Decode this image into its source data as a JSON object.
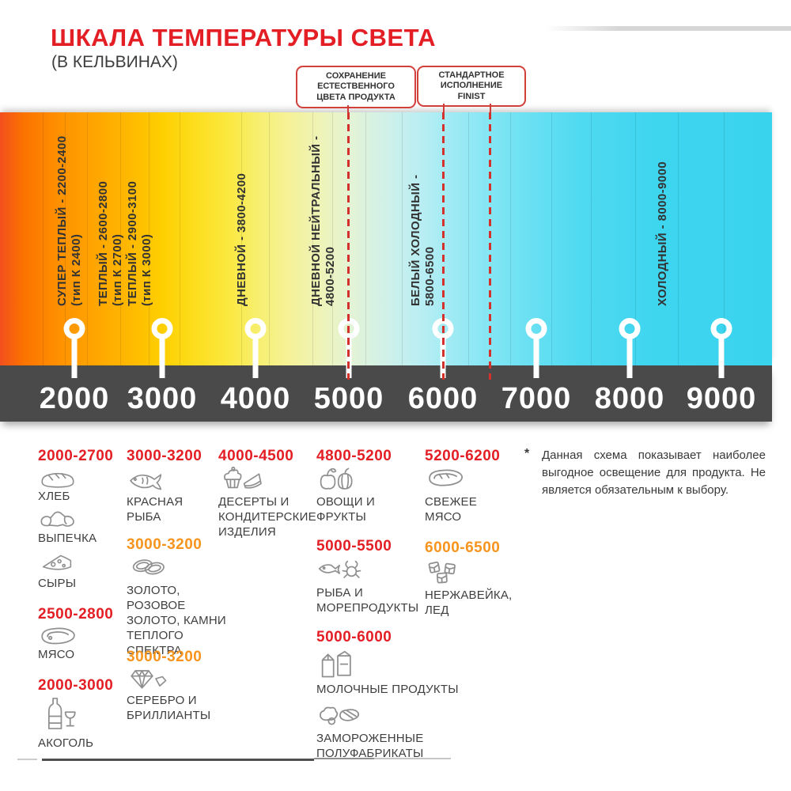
{
  "header": {
    "title": "ШКАЛА ТЕМПЕРАТУРЫ СВЕТА",
    "subtitle": "(В КЕЛЬВИНАХ)"
  },
  "callouts": {
    "natural": {
      "line1": "СОХРАНЕНИЕ",
      "line2": "ЕСТЕСТВЕННОГО",
      "line3": "ЦВЕТА ПРОДУКТА"
    },
    "finist": {
      "line1": "СТАНДАРТНОЕ",
      "line2": "ИСПОЛНЕНИЕ",
      "line3": "FINIST"
    }
  },
  "scale": {
    "zones": [
      {
        "line1": "СУПЕР ТЕПЛЫЙ - 2200-2400",
        "line2": "(тип К 2400)"
      },
      {
        "line1": "ТЕПЛЫЙ - 2600-2800",
        "line2": "(тип К 2700)"
      },
      {
        "line1": "ТЕПЛЫЙ - 2900-3100",
        "line2": "(тип К 3000)"
      },
      {
        "line1": "ДНЕВНОЙ - 3800-4200",
        "line2": ""
      },
      {
        "line1": "ДНЕВНОЙ НЕЙТРАЛЬНЫЙ -",
        "line2": "4800-5200"
      },
      {
        "line1": "БЕЛЫЙ ХОЛОДНЫЙ -",
        "line2": "5800-6500"
      },
      {
        "line1": "ХОЛОДНЫЙ - 8000-9000",
        "line2": ""
      }
    ],
    "ticks": [
      "2000",
      "3000",
      "4000",
      "5000",
      "6000",
      "7000",
      "8000",
      "9000"
    ]
  },
  "products": {
    "col1": {
      "range1": "2000-2700",
      "bread": "ХЛЕБ",
      "pastry": "ВЫПЕЧКА",
      "cheese": "СЫРЫ",
      "range2": "2500-2800",
      "meat": "МЯСО",
      "range3": "2000-3000",
      "alcohol": "АКОГОЛЬ"
    },
    "col2": {
      "range1": "3000-3200",
      "red_fish": "КРАСНАЯ РЫБА",
      "range2": "3000-3200",
      "gold": "ЗОЛОТО, РОЗОВОЕ ЗОЛОТО, КАМНИ ТЕПЛОГО СПЕКТРА",
      "range3": "3000-3200",
      "silver": "СЕРЕБРО И БРИЛЛИАНТЫ"
    },
    "col3": {
      "range1": "4000-4500",
      "desserts": "ДЕСЕРТЫ И КОНДИТЕРСКИЕ ИЗДЕЛИЯ"
    },
    "col4": {
      "range1": "4800-5200",
      "vegetables": "ОВОЩИ И ФРУКТЫ",
      "range2": "5000-5500",
      "seafood": "РЫБА И МОРЕПРОДУКТЫ",
      "range3": "5000-6000",
      "dairy": "МОЛОЧНЫЕ ПРОДУКТЫ",
      "frozen": "ЗАМОРОЖЕННЫЕ ПОЛУФАБРИКАТЫ"
    },
    "col5": {
      "range1": "5200-6200",
      "fresh_meat": "СВЕЖЕЕ МЯСО",
      "range2": "6000-6500",
      "steel_ice": "НЕРЖАВЕЙКА, ЛЕД"
    }
  },
  "footnote": {
    "marker": "*",
    "text": "Данная схема показывает наиболее выгодное освещение для продукта. Не является обязательным к выбору."
  },
  "colors": {
    "accent_red": "#e31e24",
    "accent_orange": "#f7941d",
    "axis_bar": "#4a4a4b"
  }
}
